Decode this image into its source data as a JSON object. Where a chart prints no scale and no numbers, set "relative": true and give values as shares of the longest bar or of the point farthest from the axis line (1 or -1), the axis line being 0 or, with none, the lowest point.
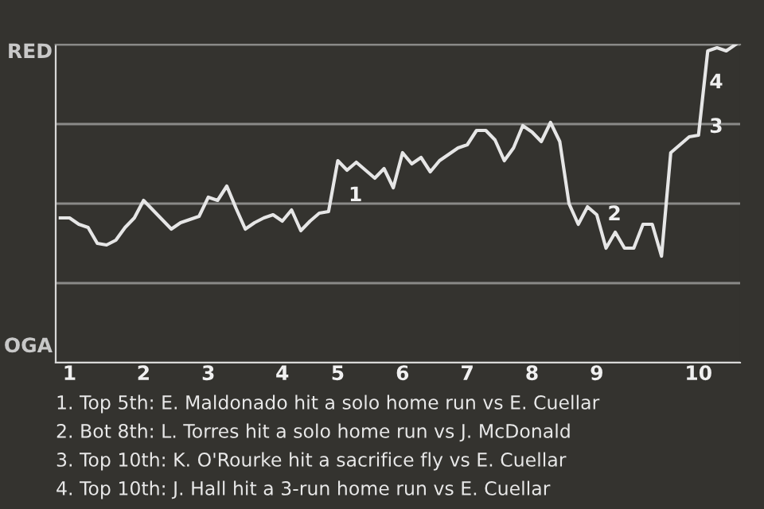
{
  "chart_data": {
    "type": "line",
    "relative": true,
    "categories": [
      null,
      "1",
      null,
      null,
      null,
      null,
      null,
      null,
      null,
      "2",
      null,
      null,
      null,
      null,
      null,
      null,
      "3",
      null,
      null,
      null,
      null,
      null,
      null,
      null,
      "4",
      null,
      null,
      null,
      null,
      null,
      "5",
      null,
      null,
      null,
      null,
      null,
      null,
      "6",
      null,
      null,
      null,
      null,
      null,
      null,
      "7",
      null,
      null,
      null,
      null,
      null,
      null,
      "8",
      null,
      null,
      null,
      null,
      null,
      null,
      "9",
      null,
      null,
      null,
      null,
      null,
      null,
      null,
      null,
      null,
      null,
      "10",
      null,
      null,
      null,
      null
    ],
    "series": [
      {
        "color": "#e6e6e6",
        "values": [
          0.455,
          0.455,
          0.435,
          0.425,
          0.375,
          0.37,
          0.385,
          0.425,
          0.455,
          0.51,
          0.48,
          0.45,
          0.42,
          0.44,
          0.45,
          0.46,
          0.52,
          0.51,
          0.555,
          0.485,
          0.42,
          0.44,
          0.455,
          0.465,
          0.445,
          0.48,
          0.415,
          0.445,
          0.47,
          0.475,
          0.635,
          0.605,
          0.63,
          0.605,
          0.58,
          0.61,
          0.55,
          0.66,
          0.625,
          0.645,
          0.6,
          0.635,
          0.655,
          0.675,
          0.685,
          0.73,
          0.73,
          0.7,
          0.635,
          0.675,
          0.745,
          0.725,
          0.695,
          0.755,
          0.695,
          0.5,
          0.435,
          0.49,
          0.465,
          0.36,
          0.41,
          0.36,
          0.36,
          0.435,
          0.435,
          0.335,
          0.66,
          0.685,
          0.71,
          0.715,
          0.98,
          0.99,
          0.98,
          1.0
        ]
      }
    ],
    "grid": "y",
    "marker": "none",
    "line_style": "solid",
    "annotations": [
      "RED",
      "OGA",
      {
        "text": "1",
        "x": "5",
        "y": 0.525
      },
      {
        "text": "2",
        "x": "9",
        "y": 0.465
      },
      {
        "text": "3",
        "x": "10",
        "y": 0.74
      },
      {
        "text": "4",
        "x": "10",
        "y": 0.88
      },
      "1. Top 5th: E. Maldonado hit a solo home run vs E. Cuellar",
      "2. Bot 8th: L. Torres hit a solo home run vs J. McDonald",
      "3. Top 10th: K. O'Rourke hit a sacrifice fly vs E. Cuellar",
      "4. Top 10th: J. Hall hit a 3-run home run vs E. Cuellar"
    ]
  }
}
